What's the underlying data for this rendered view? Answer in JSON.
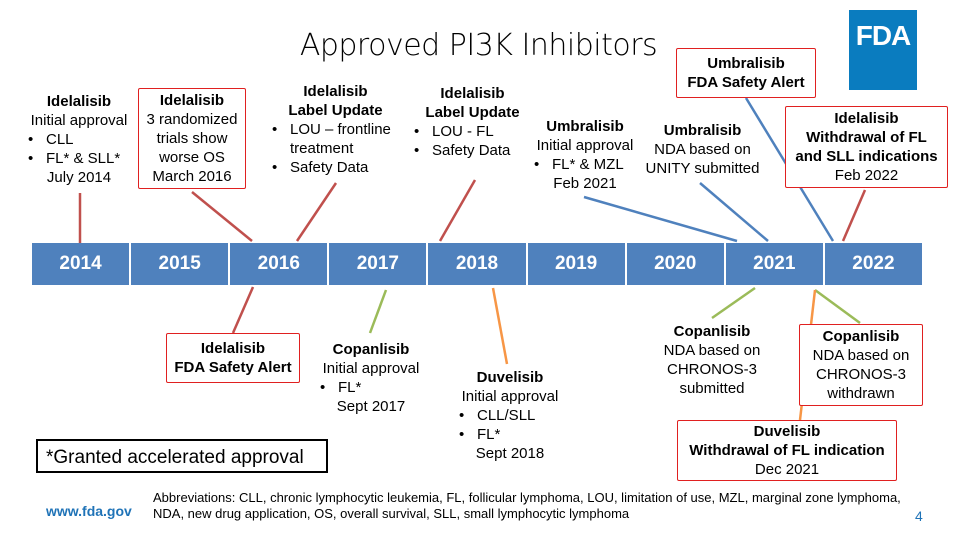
{
  "title": "Approved PI3K Inhibitors",
  "logo": "FDA",
  "years": [
    "2014",
    "2015",
    "2016",
    "2017",
    "2018",
    "2019",
    "2020",
    "2021",
    "2022"
  ],
  "events": {
    "e1": {
      "name": "Idelalisib",
      "lines": [
        "Initial approval"
      ],
      "bullets": [
        "CLL",
        "FL* & SLL*"
      ],
      "date": "July 2014"
    },
    "e2": {
      "name": "Idelalisib",
      "lines": [
        "3 randomized",
        "trials show",
        "worse OS"
      ],
      "date": "March 2016"
    },
    "e3": {
      "name": "Idelalisib",
      "name2": "Label Update",
      "bullets": [
        "LOU – frontline treatment",
        "Safety Data"
      ]
    },
    "e4": {
      "name": "Idelalisib",
      "name2": "Label Update",
      "bullets": [
        "LOU - FL",
        "Safety Data"
      ]
    },
    "e5": {
      "name": "Umbralisib",
      "lines": [
        "Initial approval"
      ],
      "bullets": [
        "FL* & MZL"
      ],
      "date": "Feb 2021"
    },
    "e6": {
      "name": "Umbralisib",
      "lines": [
        "NDA based on",
        "UNITY submitted"
      ]
    },
    "e7": {
      "name": "Umbralisib",
      "name2": "FDA Safety Alert"
    },
    "e8": {
      "name": "Idelalisib",
      "name2": "Withdrawal of FL",
      "name3": "and SLL indications",
      "date": "Feb 2022"
    },
    "e9": {
      "name": "Idelalisib",
      "name2": "FDA Safety Alert"
    },
    "e10": {
      "name": "Copanlisib",
      "lines": [
        "Initial approval"
      ],
      "bullets": [
        "FL*"
      ],
      "date": "Sept 2017"
    },
    "e11": {
      "name": "Duvelisib",
      "lines": [
        "Initial approval"
      ],
      "bullets": [
        "CLL/SLL",
        "FL*"
      ],
      "date": "Sept 2018"
    },
    "e12": {
      "name": "Copanlisib",
      "lines": [
        "NDA based on",
        "CHRONOS-3",
        "submitted"
      ]
    },
    "e13": {
      "name": "Copanlisib",
      "lines": [
        "NDA based on",
        "CHRONOS-3",
        "withdrawn"
      ]
    },
    "e14": {
      "name": "Duvelisib",
      "name2": "Withdrawal of FL indication",
      "date": "Dec 2021"
    }
  },
  "footnote": "*Granted accelerated approval",
  "url": "www.fda.gov",
  "abbreviations": "Abbreviations: CLL, chronic lymphocytic leukemia, FL, follicular lymphoma, LOU, limitation of use, MZL, marginal zone lymphoma, NDA, new drug application, OS, overall survival, SLL, small lymphocytic lymphoma",
  "page": "4",
  "colors": {
    "timeline": "#4f81bd",
    "idelalisib": "#c0504d",
    "umbralisib": "#4f81bd",
    "copanlisib": "#9bbb59",
    "duvelisib": "#f79646",
    "alert_border": "#e02020",
    "link": "#1f73b7"
  }
}
